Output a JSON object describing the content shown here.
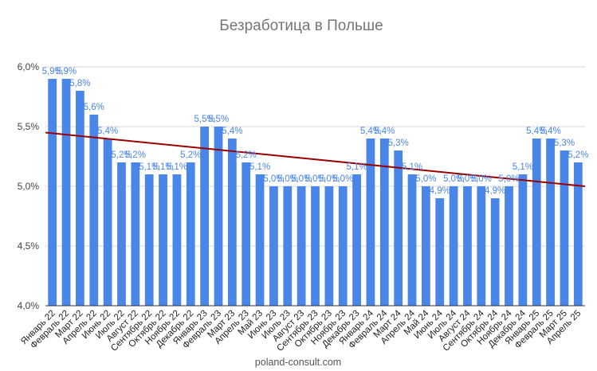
{
  "chart_data": {
    "type": "bar",
    "title": "Безработица в Польше",
    "xlabel": "",
    "ylabel": "",
    "ylim": [
      4.0,
      6.0
    ],
    "yticks": [
      "4,0%",
      "4,5%",
      "5,0%",
      "5,5%",
      "6,0%"
    ],
    "ytick_values": [
      4.0,
      4.5,
      5.0,
      5.5,
      6.0
    ],
    "grid": true,
    "legend": "none",
    "bar_color": "#4a86e8",
    "trendline_color": "#990000",
    "trendline": [
      5.45,
      5.0
    ],
    "categories": [
      "Январь 22",
      "Февраль 22",
      "Март 22",
      "Апрель 22",
      "Июнь 22",
      "Июль 22",
      "Август 22",
      "Сентябрь 22",
      "Октябрь 22",
      "Ноябрь 22",
      "Декабрь 22",
      "Январь 23",
      "Февраль 23",
      "Март 23",
      "Апрель 23",
      "Май 23",
      "Июнь 23",
      "Июль 23",
      "Август 23",
      "Сентябрь 23",
      "Октябрь 23",
      "Ноябрь 23",
      "Декабрь 23",
      "Январь 24",
      "Февраль 24",
      "Март 24",
      "Апрель 24",
      "Май 24",
      "Июнь 24",
      "Июль 24",
      "Август 24",
      "Сентябрь 24",
      "Октябрь 24",
      "Ноябрь 24",
      "Декабрь 24",
      "Январь 25",
      "Февраль 25",
      "Март 25",
      "Апрель 25"
    ],
    "values": [
      5.9,
      5.9,
      5.8,
      5.6,
      5.4,
      5.2,
      5.2,
      5.1,
      5.1,
      5.1,
      5.2,
      5.5,
      5.5,
      5.4,
      5.2,
      5.1,
      5.0,
      5.0,
      5.0,
      5.0,
      5.0,
      5.0,
      5.1,
      5.4,
      5.4,
      5.3,
      5.1,
      5.0,
      4.9,
      5.0,
      5.0,
      5.0,
      4.9,
      5.0,
      5.1,
      5.4,
      5.4,
      5.3,
      5.2
    ],
    "data_labels": [
      "5,9%",
      "5,9%",
      "5,8%",
      "5,6%",
      "5,4%",
      "5,2%",
      "5,2%",
      "5,1%",
      "5,1%",
      "5,1%",
      "5,2%",
      "5,5%",
      "5,5%",
      "5,4%",
      "5,2%",
      "5,1%",
      "5,0%",
      "5,0%",
      "5,0%",
      "5,0%",
      "5,0%",
      "5,0%",
      "5,1%",
      "5,4%",
      "5,4%",
      "5,3%",
      "5,1%",
      "5,0%",
      "4,9%",
      "5,0%",
      "5,0%",
      "5,0%",
      "4,9%",
      "5,0%",
      "5,1%",
      "5,4%",
      "5,4%",
      "5,3%",
      "5,2%"
    ]
  },
  "source_text": "poland-consult.com"
}
